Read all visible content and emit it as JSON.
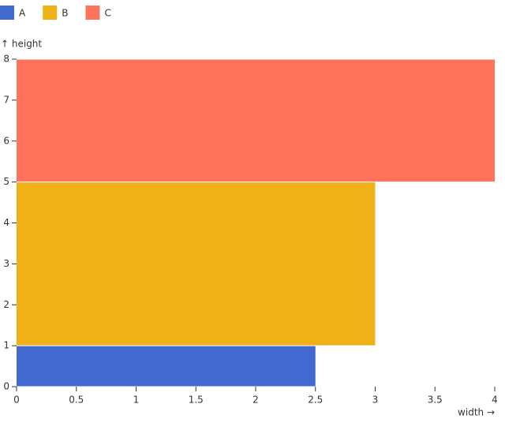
{
  "chart_data": {
    "type": "stacked-rect",
    "x_label": "width →",
    "y_label": "↑ height",
    "xlim": [
      0,
      4
    ],
    "xticks": [
      0,
      0.5,
      1,
      1.5,
      2,
      2.5,
      3,
      3.5,
      4
    ],
    "ylim": [
      0,
      8
    ],
    "yticks": [
      0,
      1,
      2,
      3,
      4,
      5,
      6,
      7,
      8
    ],
    "grid": false,
    "series": [
      {
        "name": "A",
        "color": "#4269d0",
        "width": 2.5,
        "height": 1
      },
      {
        "name": "B",
        "color": "#efb118",
        "width": 3,
        "height": 4
      },
      {
        "name": "C",
        "color": "#ff725c",
        "width": 4,
        "height": 3
      }
    ]
  }
}
